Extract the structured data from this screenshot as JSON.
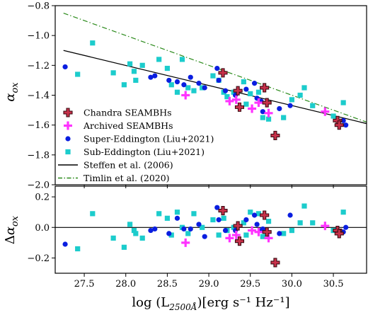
{
  "chart_data": [
    {
      "type": "scatter",
      "panel": "top",
      "ylabel": "α_ox",
      "xlim": [
        27.15,
        30.9
      ],
      "ylim": [
        -2.0,
        -0.8
      ],
      "xticks": [
        27.5,
        28.0,
        28.5,
        29.0,
        29.5,
        30.0,
        30.5
      ],
      "yticks": [
        -2.0,
        -1.8,
        -1.6,
        -1.4,
        -1.2,
        -1.0,
        -0.8
      ],
      "ytick_labels": [
        "−2.0",
        "−1.8",
        "−1.6",
        "−1.4",
        "−1.2",
        "−1.0",
        "−0.8"
      ],
      "legend_position": "lower-left",
      "series": [
        {
          "name": "Chandra SEAMBHs",
          "marker": "plus-filled",
          "color": "#c8314a",
          "x": [
            29.17,
            29.35,
            29.37,
            29.67,
            29.7,
            29.8,
            30.55,
            30.57
          ],
          "y": [
            -1.25,
            -1.37,
            -1.48,
            -1.35,
            -1.45,
            -1.67,
            -1.57,
            -1.6
          ]
        },
        {
          "name": "Archived SEAMBHs",
          "marker": "plus",
          "color": "#ff33ff",
          "x": [
            28.72,
            29.25,
            29.33,
            29.52,
            29.6,
            29.72,
            30.4
          ],
          "y": [
            -1.4,
            -1.44,
            -1.43,
            -1.49,
            -1.45,
            -1.52,
            -1.51
          ]
        },
        {
          "name": "Super-Eddington (Liu+2021)",
          "marker": "circle",
          "color": "#0a1ee0",
          "x": [
            27.27,
            28.3,
            28.35,
            28.52,
            28.62,
            28.7,
            28.78,
            28.88,
            28.95,
            29.1,
            29.12,
            29.2,
            29.32,
            29.45,
            29.55,
            29.58,
            29.63,
            29.65,
            29.85,
            29.98,
            30.62,
            30.65
          ],
          "y": [
            -1.21,
            -1.28,
            -1.27,
            -1.3,
            -1.31,
            -1.33,
            -1.28,
            -1.32,
            -1.35,
            -1.22,
            -1.3,
            -1.37,
            -1.4,
            -1.36,
            -1.32,
            -1.42,
            -1.44,
            -1.51,
            -1.49,
            -1.47,
            -1.57,
            -1.6
          ]
        },
        {
          "name": "Sub-Eddington (Liu+2021)",
          "marker": "square",
          "color": "#1ccccc",
          "x": [
            27.42,
            27.6,
            27.85,
            27.98,
            28.05,
            28.1,
            28.12,
            28.2,
            28.4,
            28.5,
            28.55,
            28.62,
            28.68,
            28.75,
            28.82,
            28.92,
            29.05,
            29.12,
            29.18,
            29.22,
            29.3,
            29.42,
            29.45,
            29.5,
            29.6,
            29.65,
            29.72,
            29.9,
            30.0,
            30.1,
            30.15,
            30.25,
            30.5,
            30.62
          ],
          "y": [
            -1.26,
            -1.05,
            -1.25,
            -1.33,
            -1.19,
            -1.24,
            -1.3,
            -1.2,
            -1.16,
            -1.22,
            -1.33,
            -1.38,
            -1.16,
            -1.35,
            -1.37,
            -1.35,
            -1.27,
            -1.3,
            -1.38,
            -1.41,
            -1.38,
            -1.31,
            -1.46,
            -1.39,
            -1.38,
            -1.55,
            -1.56,
            -1.55,
            -1.43,
            -1.4,
            -1.35,
            -1.47,
            -1.54,
            -1.45
          ]
        }
      ],
      "lines": [
        {
          "name": "Steffen et al. (2006)",
          "style": "solid",
          "color": "#000000",
          "x": [
            27.25,
            30.9
          ],
          "y": [
            -1.1,
            -1.59
          ]
        },
        {
          "name": "Timlin et al. (2020)",
          "style": "dash-dot",
          "color": "#2a8a1a",
          "x": [
            27.25,
            30.9
          ],
          "y": [
            -0.85,
            -1.58
          ]
        }
      ]
    },
    {
      "type": "scatter",
      "panel": "bottom",
      "xlabel_main": "log (L",
      "xlabel_sub": "2500Å",
      "xlabel_rest": ")[erg s⁻¹ Hz⁻¹]",
      "ylabel": "Δα_ox",
      "xlim": [
        27.15,
        30.9
      ],
      "ylim": [
        -0.3,
        0.27
      ],
      "xticks": [
        27.5,
        28.0,
        28.5,
        29.0,
        29.5,
        30.0,
        30.5
      ],
      "xtick_labels": [
        "27.5",
        "28.0",
        "28.5",
        "29.0",
        "29.5",
        "30.0",
        "30.5"
      ],
      "yticks": [
        -0.2,
        0.0,
        0.2
      ],
      "ytick_labels": [
        "−0.2",
        "0.0",
        "0.2"
      ],
      "hline": 0.0,
      "series": [
        {
          "name": "Chandra SEAMBHs",
          "marker": "plus-filled",
          "color": "#c8314a",
          "x": [
            29.17,
            29.35,
            29.37,
            29.67,
            29.7,
            29.8,
            30.55,
            30.57
          ],
          "y": [
            0.11,
            0.01,
            -0.09,
            0.08,
            -0.03,
            -0.23,
            -0.02,
            -0.04
          ]
        },
        {
          "name": "Archived SEAMBHs",
          "marker": "plus",
          "color": "#ff33ff",
          "x": [
            28.72,
            29.25,
            29.33,
            29.52,
            29.6,
            29.72,
            30.4
          ],
          "y": [
            -0.1,
            -0.07,
            -0.05,
            -0.02,
            -0.03,
            -0.07,
            0.01
          ]
        },
        {
          "name": "Super-Eddington (Liu+2021)",
          "marker": "circle",
          "color": "#0a1ee0",
          "x": [
            27.27,
            28.3,
            28.35,
            28.52,
            28.62,
            28.7,
            28.78,
            28.88,
            28.95,
            29.1,
            29.12,
            29.2,
            29.32,
            29.45,
            29.55,
            29.58,
            29.63,
            29.65,
            29.85,
            29.98,
            30.62,
            30.65
          ],
          "y": [
            -0.11,
            -0.02,
            -0.01,
            -0.04,
            0.06,
            -0.01,
            -0.01,
            0.02,
            -0.06,
            0.13,
            0.05,
            -0.02,
            -0.02,
            0.05,
            0.08,
            0.02,
            -0.02,
            -0.01,
            -0.04,
            0.08,
            -0.03,
            0.0
          ]
        },
        {
          "name": "Sub-Eddington (Liu+2021)",
          "marker": "square",
          "color": "#1ccccc",
          "x": [
            27.42,
            27.6,
            27.85,
            27.98,
            28.05,
            28.1,
            28.12,
            28.2,
            28.4,
            28.5,
            28.55,
            28.62,
            28.68,
            28.75,
            28.82,
            28.92,
            29.05,
            29.12,
            29.18,
            29.22,
            29.3,
            29.42,
            29.45,
            29.5,
            29.6,
            29.65,
            29.72,
            29.9,
            30.0,
            30.1,
            30.15,
            30.25,
            30.5,
            30.62
          ],
          "y": [
            -0.14,
            0.09,
            -0.07,
            -0.13,
            0.02,
            -0.02,
            -0.04,
            -0.07,
            0.09,
            0.06,
            -0.05,
            0.1,
            0.0,
            -0.04,
            0.09,
            0.0,
            0.05,
            -0.05,
            0.06,
            -0.02,
            0.0,
            0.03,
            -0.05,
            0.1,
            0.09,
            -0.06,
            0.04,
            -0.04,
            -0.02,
            0.03,
            0.14,
            0.03,
            -0.02,
            0.1
          ]
        }
      ]
    }
  ]
}
